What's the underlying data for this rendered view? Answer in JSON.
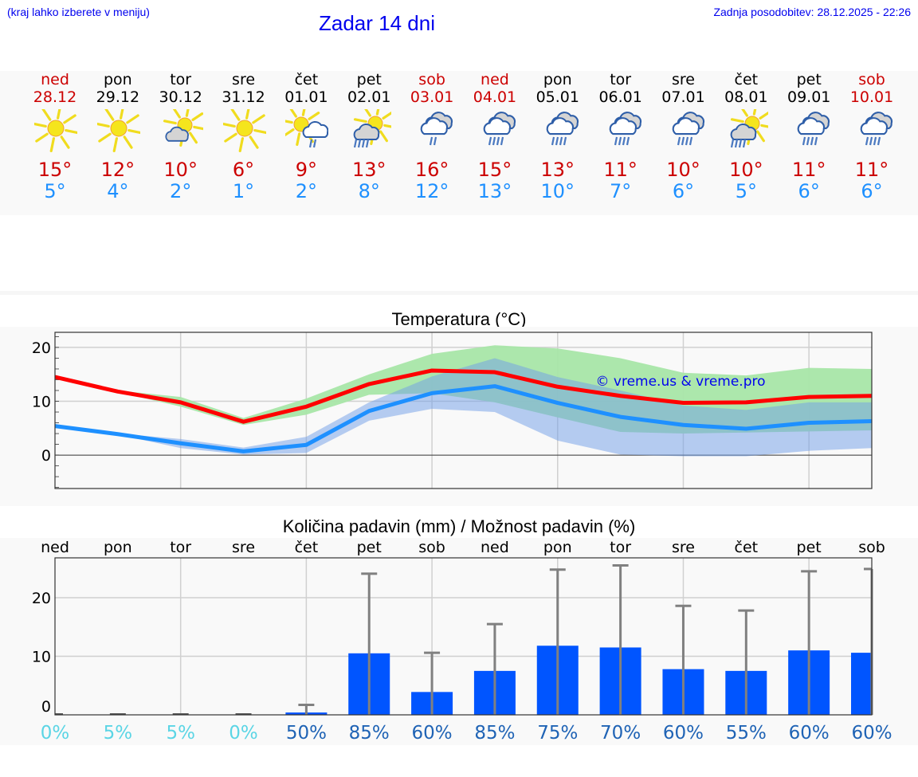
{
  "header": {
    "hint": "(kraj lahko izberete v meniju)",
    "title": "Zadar 14 dni",
    "updated": "Zadnja posodobitev: 28.12.2025 - 22:26"
  },
  "days": [
    {
      "name": "ned",
      "date": "28.12",
      "weekend": true,
      "icon": "sun-icon",
      "tmax": "15°",
      "tmin": "5°"
    },
    {
      "name": "pon",
      "date": "29.12",
      "weekend": false,
      "icon": "sun-icon",
      "tmax": "12°",
      "tmin": "4°"
    },
    {
      "name": "tor",
      "date": "30.12",
      "weekend": false,
      "icon": "sun-cloud-icon",
      "tmax": "10°",
      "tmin": "2°"
    },
    {
      "name": "sre",
      "date": "31.12",
      "weekend": false,
      "icon": "sun-icon",
      "tmax": "6°",
      "tmin": "1°"
    },
    {
      "name": "čet",
      "date": "01.01",
      "weekend": false,
      "icon": "sun-cloud-light-rain-icon",
      "tmax": "9°",
      "tmin": "2°"
    },
    {
      "name": "pet",
      "date": "02.01",
      "weekend": false,
      "icon": "sun-cloud-rain-icon",
      "tmax": "13°",
      "tmin": "8°"
    },
    {
      "name": "sob",
      "date": "03.01",
      "weekend": true,
      "icon": "cloud-light-rain-icon",
      "tmax": "16°",
      "tmin": "12°"
    },
    {
      "name": "ned",
      "date": "04.01",
      "weekend": true,
      "icon": "cloud-rain-icon",
      "tmax": "15°",
      "tmin": "13°"
    },
    {
      "name": "pon",
      "date": "05.01",
      "weekend": false,
      "icon": "cloud-rain-icon",
      "tmax": "13°",
      "tmin": "10°"
    },
    {
      "name": "tor",
      "date": "06.01",
      "weekend": false,
      "icon": "cloud-rain-icon",
      "tmax": "11°",
      "tmin": "7°"
    },
    {
      "name": "sre",
      "date": "07.01",
      "weekend": false,
      "icon": "cloud-rain-icon",
      "tmax": "10°",
      "tmin": "6°"
    },
    {
      "name": "čet",
      "date": "08.01",
      "weekend": false,
      "icon": "sun-cloud-rain-icon",
      "tmax": "10°",
      "tmin": "5°"
    },
    {
      "name": "pet",
      "date": "09.01",
      "weekend": false,
      "icon": "cloud-rain-icon",
      "tmax": "11°",
      "tmin": "6°"
    },
    {
      "name": "sob",
      "date": "10.01",
      "weekend": true,
      "icon": "cloud-rain-icon",
      "tmax": "11°",
      "tmin": "6°"
    }
  ],
  "colors": {
    "weekend": "#cc0000",
    "tmax": "#cc0000",
    "tmin": "#1e90ff",
    "max_line": "#ff0000",
    "min_line": "#1e90ff",
    "max_band": "#a8e6a8",
    "min_band": "#a8c4f0",
    "bar": "#0055ff",
    "errbar": "#808080",
    "prob_low": "#5bd5e5",
    "prob_high": "#1f63b5"
  },
  "chart_data": [
    {
      "type": "line",
      "title": "Temperatura (°C)",
      "xlabel": "",
      "ylabel": "",
      "categories": [
        "ned",
        "pon",
        "tor",
        "sre",
        "čet",
        "pet",
        "sob",
        "ned",
        "pon",
        "tor",
        "sre",
        "čet",
        "pet",
        "sob"
      ],
      "ylim": [
        -6.2,
        22.8
      ],
      "yticks": [
        0,
        10,
        20
      ],
      "grid": true,
      "watermark": "© vreme.us & vreme.pro",
      "series": [
        {
          "name": "max",
          "values": [
            14.5,
            11.8,
            9.8,
            6.2,
            9.0,
            13.2,
            15.7,
            15.4,
            12.7,
            11.0,
            9.7,
            9.8,
            10.8,
            11.0
          ]
        },
        {
          "name": "min",
          "values": [
            5.4,
            3.9,
            2.2,
            0.7,
            1.9,
            8.2,
            11.5,
            12.8,
            9.7,
            7.1,
            5.6,
            4.9,
            6.0,
            6.3
          ]
        },
        {
          "name": "max_range_low",
          "values": [
            14.3,
            11.7,
            9.0,
            5.6,
            7.5,
            11.2,
            11.5,
            9.8,
            7.0,
            4.3,
            4.0,
            4.2,
            4.4,
            4.6
          ]
        },
        {
          "name": "max_range_high",
          "values": [
            14.6,
            12.0,
            10.8,
            6.9,
            10.5,
            15.0,
            18.8,
            20.4,
            19.8,
            18.0,
            15.3,
            14.8,
            16.2,
            16.0
          ]
        },
        {
          "name": "min_range_low",
          "values": [
            5.2,
            3.8,
            1.3,
            0.1,
            0.4,
            6.4,
            8.6,
            8.0,
            2.7,
            0.1,
            -0.2,
            -0.2,
            0.8,
            1.3
          ]
        },
        {
          "name": "min_range_high",
          "values": [
            5.6,
            4.0,
            3.0,
            1.4,
            3.4,
            9.8,
            14.6,
            18.0,
            14.5,
            12.0,
            9.2,
            8.4,
            9.8,
            9.8
          ]
        }
      ]
    },
    {
      "type": "bar",
      "title": "Količina padavin (mm) / Možnost padavin (%)",
      "xlabel": "",
      "ylabel": "",
      "categories": [
        "ned",
        "pon",
        "tor",
        "sre",
        "čet",
        "pet",
        "sob",
        "ned",
        "pon",
        "tor",
        "sre",
        "čet",
        "pet",
        "sob"
      ],
      "ylim": [
        0,
        26.8
      ],
      "yticks": [
        0,
        10,
        20
      ],
      "grid": true,
      "series": [
        {
          "name": "precip_mm",
          "values": [
            0,
            0,
            0,
            0,
            0.4,
            10.5,
            3.9,
            7.5,
            11.8,
            11.5,
            7.8,
            7.5,
            11.0,
            10.6
          ]
        },
        {
          "name": "precip_max_mm",
          "values": [
            0,
            0,
            0,
            0,
            1.7,
            24.1,
            10.6,
            15.5,
            24.8,
            25.5,
            18.6,
            17.8,
            24.5,
            24.9
          ]
        }
      ],
      "probability": [
        "0%",
        "5%",
        "5%",
        "0%",
        "50%",
        "85%",
        "60%",
        "85%",
        "75%",
        "70%",
        "60%",
        "55%",
        "60%",
        "60%"
      ]
    }
  ]
}
